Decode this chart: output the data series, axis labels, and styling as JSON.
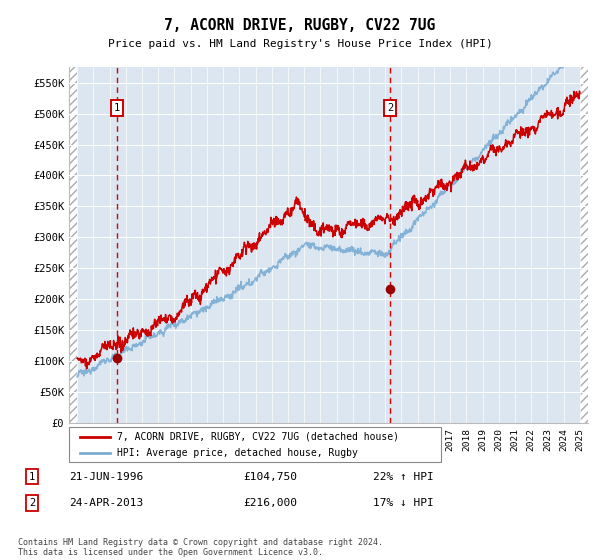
{
  "title": "7, ACORN DRIVE, RUGBY, CV22 7UG",
  "subtitle": "Price paid vs. HM Land Registry's House Price Index (HPI)",
  "ylim": [
    0,
    575000
  ],
  "yticks": [
    0,
    50000,
    100000,
    150000,
    200000,
    250000,
    300000,
    350000,
    400000,
    450000,
    500000,
    550000
  ],
  "ytick_labels": [
    "£0",
    "£50K",
    "£100K",
    "£150K",
    "£200K",
    "£250K",
    "£300K",
    "£350K",
    "£400K",
    "£450K",
    "£500K",
    "£550K"
  ],
  "xlim_start": 1993.5,
  "xlim_end": 2025.5,
  "hpi_color": "#7badd4",
  "price_color": "#cc0000",
  "marker1_date": 1996.47,
  "marker1_price": 104750,
  "marker1_label": "1",
  "marker1_text": "21-JUN-1996",
  "marker1_price_text": "£104,750",
  "marker1_hpi_text": "22% ↑ HPI",
  "marker2_date": 2013.31,
  "marker2_price": 216000,
  "marker2_label": "2",
  "marker2_text": "24-APR-2013",
  "marker2_price_text": "£216,000",
  "marker2_hpi_text": "17% ↓ HPI",
  "legend_line1": "7, ACORN DRIVE, RUGBY, CV22 7UG (detached house)",
  "legend_line2": "HPI: Average price, detached house, Rugby",
  "footnote": "Contains HM Land Registry data © Crown copyright and database right 2024.\nThis data is licensed under the Open Government Licence v3.0.",
  "bg_color": "#dce6f1",
  "hatch_color": "#bbbbbb",
  "grid_color": "#ffffff"
}
